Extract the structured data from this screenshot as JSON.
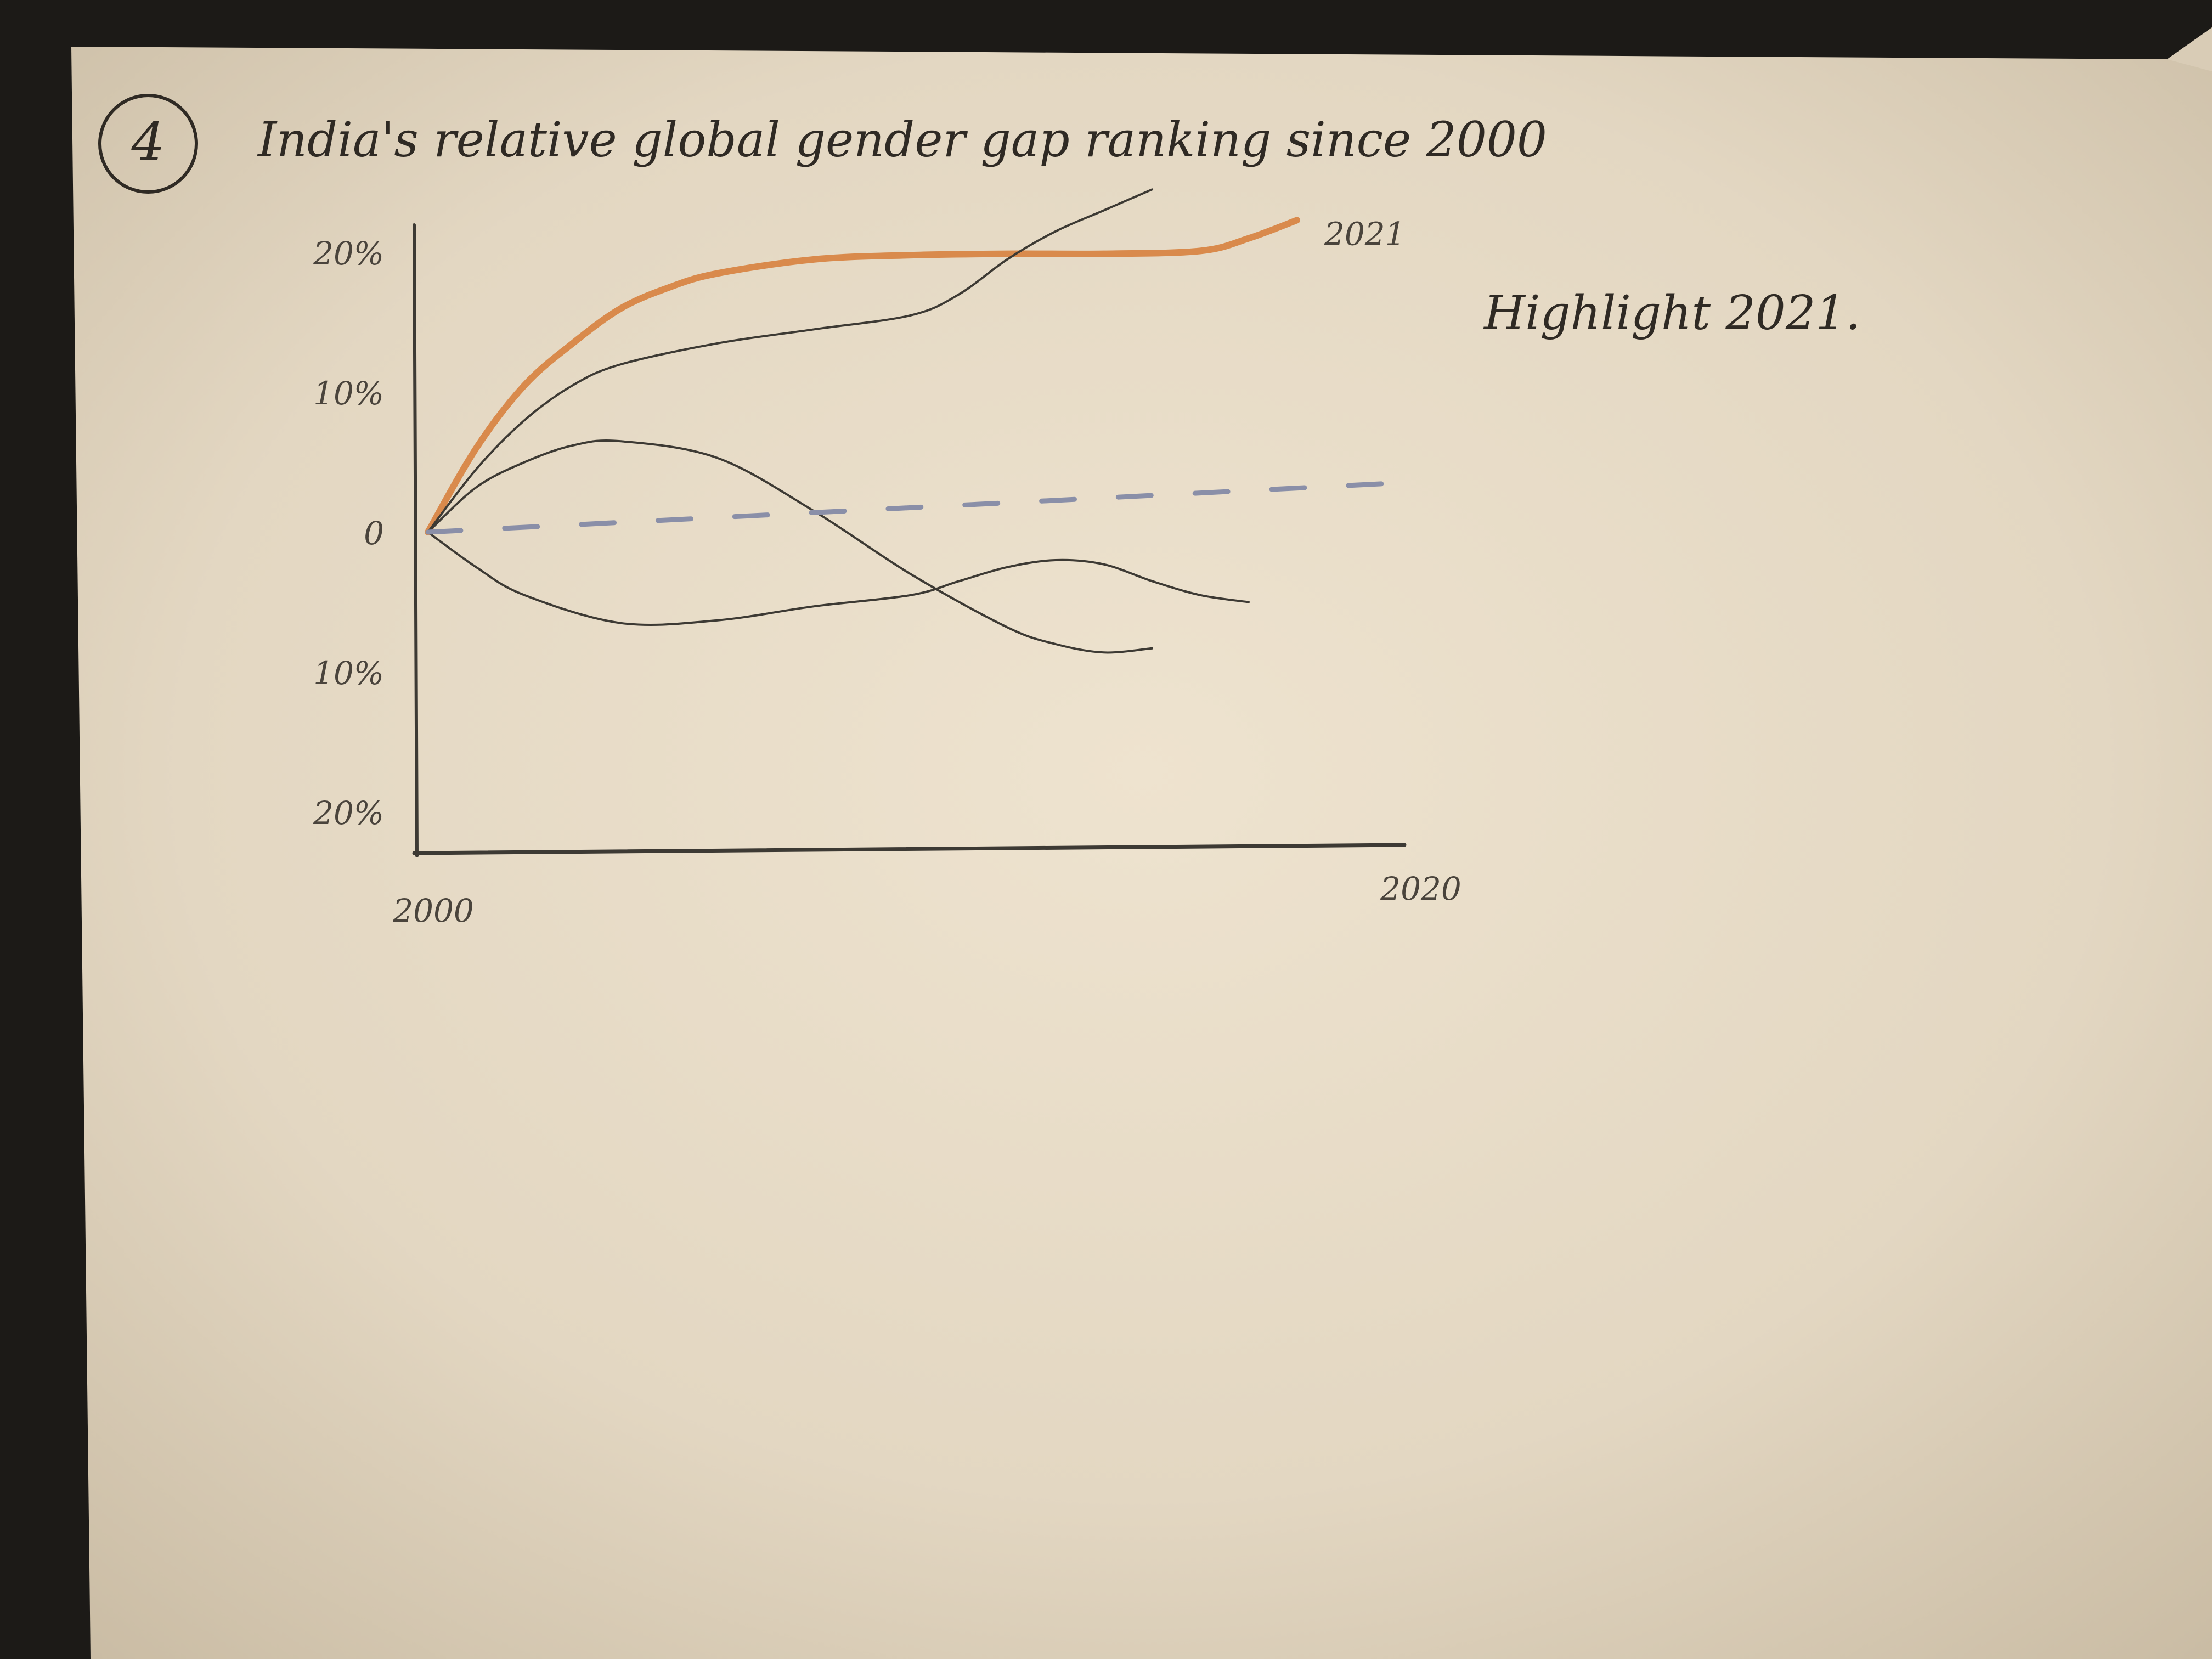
{
  "figure_number": "4",
  "annotation": "Highlight 2021.",
  "colors": {
    "paper": "#e8ddc9",
    "ink": "#3d3a34",
    "highlight": "#d98a4c",
    "baseline": "#8a8fa8"
  },
  "chart_data": {
    "type": "line",
    "title": "India's relative global gender gap ranking since 2000",
    "xlabel": "",
    "ylabel": "",
    "xlim": [
      2000,
      2020
    ],
    "ylim": [
      -25,
      25
    ],
    "x_ticks": [
      {
        "value": 2000,
        "label": "2000"
      },
      {
        "value": 2020,
        "label": "2020"
      }
    ],
    "y_ticks": [
      {
        "value": 20,
        "label": "20%"
      },
      {
        "value": 10,
        "label": "10%"
      },
      {
        "value": 0,
        "label": "0"
      },
      {
        "value": -10,
        "label": "10%"
      },
      {
        "value": -20,
        "label": "20%"
      }
    ],
    "grid": false,
    "legend": "none",
    "series": [
      {
        "name": "2021",
        "highlight": true,
        "x": [
          2000,
          2001,
          2002,
          2003,
          2004,
          2005,
          2006,
          2008,
          2010,
          2012,
          2014,
          2016,
          2017,
          2018
        ],
        "y": [
          0,
          6,
          10.5,
          13.5,
          16,
          17.5,
          18.5,
          19.5,
          19.8,
          19.9,
          19.9,
          20.1,
          21,
          22.3
        ]
      },
      {
        "name": "",
        "highlight": false,
        "x": [
          2000,
          2001,
          2002,
          2003,
          2004,
          2006,
          2008,
          2010,
          2011,
          2012,
          2013,
          2014,
          2015
        ],
        "y": [
          0,
          4.5,
          8,
          10.5,
          12,
          13.5,
          14.5,
          15.5,
          17,
          19.5,
          21.5,
          23,
          24.5
        ]
      },
      {
        "name": "",
        "highlight": false,
        "x": [
          2000,
          2001,
          2002,
          2003,
          2004,
          2006,
          2008,
          2010,
          2012,
          2013,
          2014,
          2015
        ],
        "y": [
          0,
          3.2,
          5,
          6.2,
          6.5,
          5.3,
          1.5,
          -3,
          -6.8,
          -8,
          -8.6,
          -8.3
        ]
      },
      {
        "name": "",
        "highlight": false,
        "x": [
          2000,
          2001,
          2002,
          2004,
          2006,
          2008,
          2010,
          2011,
          2012,
          2013,
          2014,
          2015,
          2016,
          2017
        ],
        "y": [
          0,
          -2.5,
          -4.5,
          -6.5,
          -6.3,
          -5.3,
          -4.5,
          -3.5,
          -2.5,
          -2,
          -2.3,
          -3.5,
          -4.5,
          -5
        ]
      },
      {
        "name": "",
        "highlight": false,
        "baseline": true,
        "x": [
          2000,
          2020
        ],
        "y": [
          0,
          3.5
        ]
      }
    ]
  }
}
